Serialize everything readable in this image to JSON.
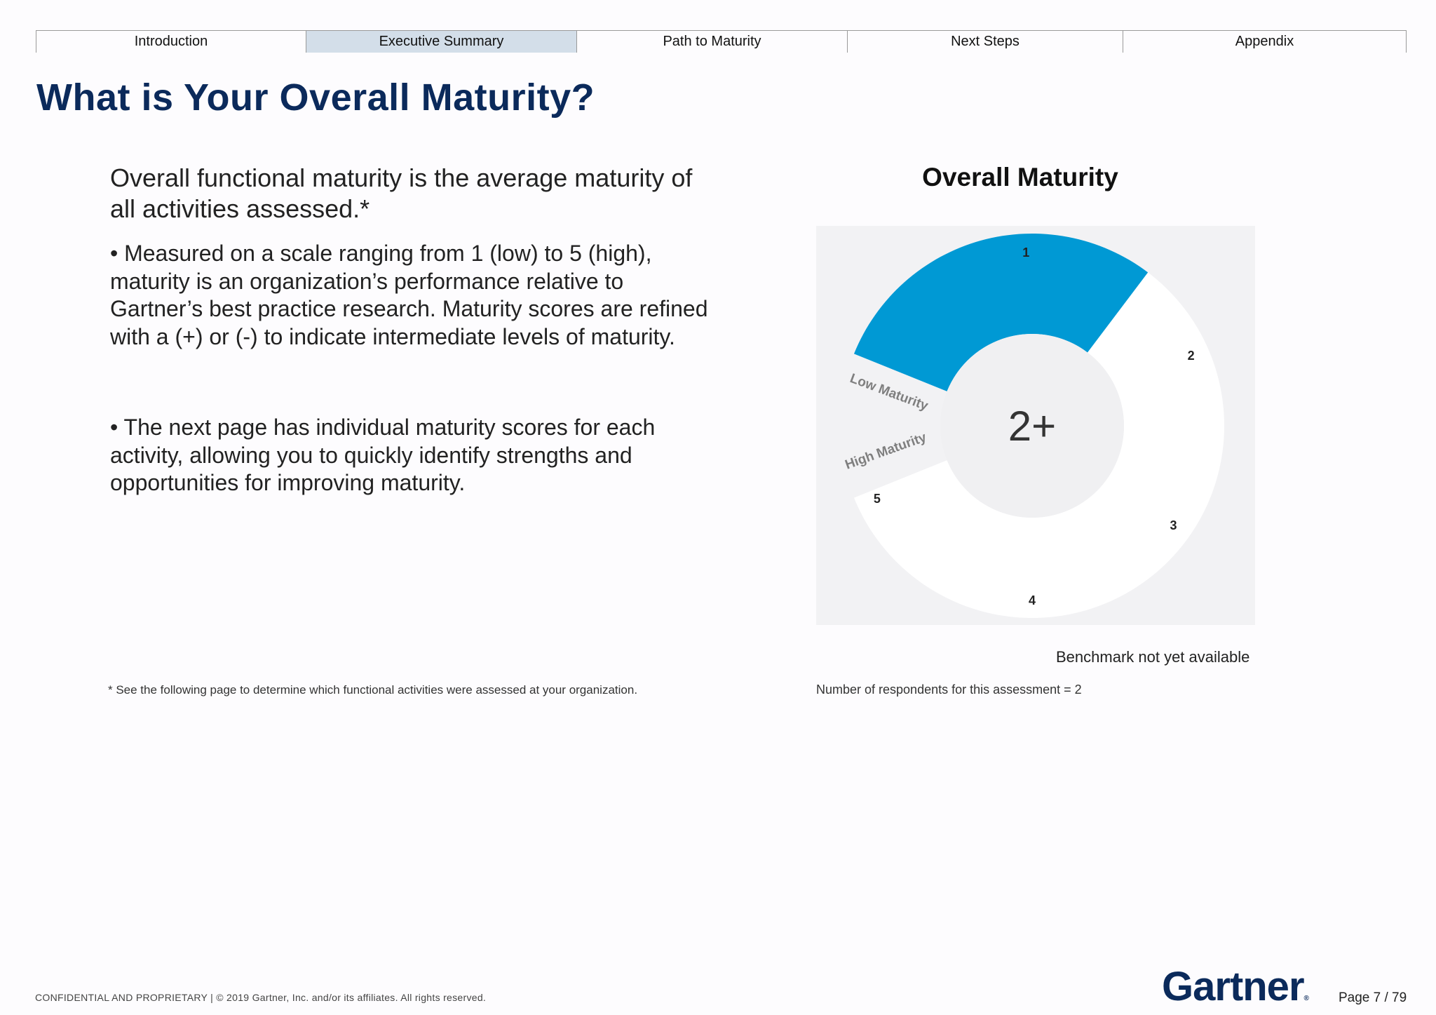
{
  "tabs": [
    {
      "label": "Introduction"
    },
    {
      "label": "Executive Summary"
    },
    {
      "label": "Path to Maturity"
    },
    {
      "label": "Next Steps"
    },
    {
      "label": "Appendix"
    }
  ],
  "page_title": "What is Your Overall Maturity?",
  "content": {
    "lead": "Overall functional maturity is the average maturity of all activities assessed.*",
    "bullet_1": "• Measured on a scale ranging from 1 (low) to 5 (high), maturity is an organization’s performance relative to Gartner’s best practice research. Maturity scores are refined with a (+) or (-) to indicate intermediate levels of maturity.",
    "bullet_2": "• The next page has individual maturity scores for each activity, allowing you to quickly identify strengths and opportunities for improving maturity.",
    "footnote": "* See the following page to determine which functional activities were assessed at your organization."
  },
  "chart_data": {
    "type": "gauge",
    "title": "Overall Maturity",
    "scale": [
      1,
      5
    ],
    "score": 2.33,
    "score_label": "2+",
    "tick_labels": [
      "1",
      "2",
      "3",
      "4",
      "5"
    ],
    "range_labels": [
      "Low Maturity",
      "High Maturity"
    ],
    "colors": {
      "filled": "#0099d4",
      "empty": "#ffffff",
      "panel": "#f2f2f4",
      "center": "#f0f0f2"
    }
  },
  "benchmark_note": "Benchmark not yet available",
  "respondents_note": "Number of respondents for this assessment = 2",
  "footer": {
    "confidential": "CONFIDENTIAL AND PROPRIETARY  |  © 2019 Gartner, Inc. and/or its affiliates. All rights reserved.",
    "logo_text": "Gartner",
    "page_number": "Page 7 / 79"
  }
}
